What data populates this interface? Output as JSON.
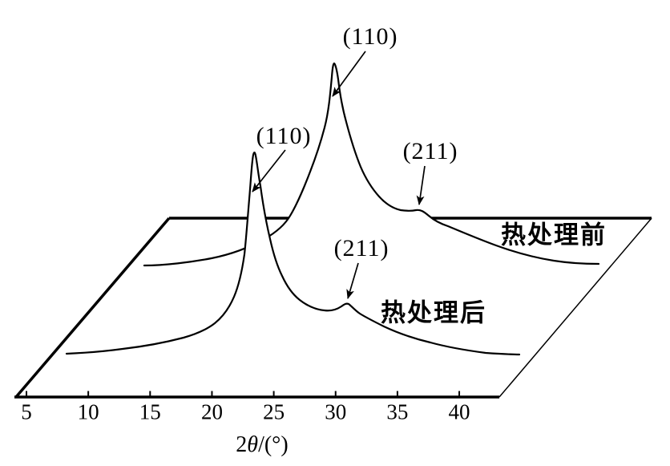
{
  "page": {
    "background": "#ffffff",
    "ink": "#000000"
  },
  "axis": {
    "title_prefix": "2",
    "title_symbol": "θ",
    "title_suffix": "/(°)"
  },
  "annotations": {
    "back_peak_110": "(110)",
    "front_peak_110": "(110)",
    "back_peak_211": "(211)",
    "front_peak_211": "(211)",
    "series_before": "热处理前",
    "series_after": "热处理后"
  },
  "chart_data": {
    "type": "line",
    "projection": "3d-waterfall",
    "title": "",
    "xlabel": "2θ/(°)",
    "x_ticks": [
      5,
      10,
      15,
      20,
      25,
      30,
      35,
      40
    ],
    "xlim": [
      5,
      43
    ],
    "grid": false,
    "legend_position": "on-chart",
    "series": [
      {
        "name": "热处理前",
        "peaks": [
          {
            "hkl": "(110)",
            "two_theta": 21,
            "relative_intensity": 100
          },
          {
            "hkl": "(211)",
            "two_theta": 28,
            "relative_intensity": 27
          }
        ],
        "trace": [
          [
            5.5,
            0
          ],
          [
            10.8,
            3
          ],
          [
            14.1,
            10
          ],
          [
            16.1,
            17
          ],
          [
            17.4,
            26
          ],
          [
            18.9,
            47
          ],
          [
            20.0,
            68
          ],
          [
            20.9,
            100
          ],
          [
            21.8,
            72
          ],
          [
            22.9,
            49
          ],
          [
            24.4,
            34
          ],
          [
            25.9,
            27
          ],
          [
            27.7,
            28
          ],
          [
            28.5,
            24
          ],
          [
            30.0,
            19
          ],
          [
            33.9,
            10
          ],
          [
            38.6,
            2
          ],
          [
            42.3,
            0
          ]
        ]
      },
      {
        "name": "热处理后",
        "peaks": [
          {
            "hkl": "(110)",
            "two_theta": 20.5,
            "relative_intensity": 100
          },
          {
            "hkl": "(211)",
            "two_theta": 28,
            "relative_intensity": 25
          }
        ],
        "trace": [
          [
            5.3,
            0
          ],
          [
            9.8,
            2
          ],
          [
            14.7,
            8
          ],
          [
            17.2,
            15
          ],
          [
            18.8,
            28
          ],
          [
            19.6,
            49
          ],
          [
            20.0,
            76
          ],
          [
            20.5,
            100
          ],
          [
            20.9,
            84
          ],
          [
            21.7,
            58
          ],
          [
            22.7,
            39
          ],
          [
            24.1,
            27
          ],
          [
            26.1,
            22
          ],
          [
            28.0,
            25
          ],
          [
            28.9,
            20
          ],
          [
            30.9,
            14
          ],
          [
            34.6,
            6
          ],
          [
            39.1,
            1
          ],
          [
            41.9,
            0
          ]
        ]
      }
    ]
  }
}
